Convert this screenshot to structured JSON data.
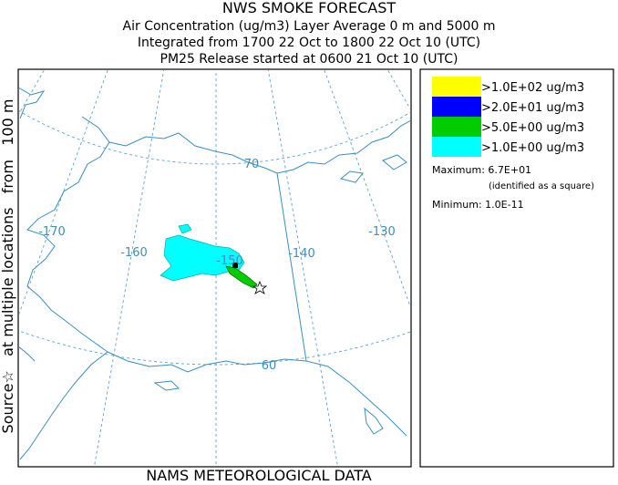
{
  "header": {
    "title": "NWS SMOKE FORECAST",
    "lines": [
      "Air Concentration (ug/m3) Layer Average    0 m and  5000 m",
      "Integrated from 1700 22 Oct to 1800 22 Oct 10 (UTC)",
      "PM25 Release started at 0600 21 Oct 10 (UTC)"
    ]
  },
  "side_label": "Source☆   at multiple locations   from   100 m",
  "map": {
    "labels": [
      "-170",
      "-160",
      "-150",
      "-140",
      "-130",
      "70",
      "60"
    ]
  },
  "legend": {
    "items": [
      {
        "label": ">1.0E+02 ug/m3",
        "color": "#ffff00"
      },
      {
        "label": ">2.0E+01 ug/m3",
        "color": "#0000ff"
      },
      {
        "label": ">5.0E+00 ug/m3",
        "color": "#00cc00"
      },
      {
        "label": ">1.0E+00 ug/m3",
        "color": "#00ffff"
      }
    ],
    "maximum": "Maximum: 6.7E+01",
    "maximum_note": "(identified as a square)",
    "minimum": "Minimum: 1.0E-11"
  },
  "footer": "NAMS METEOROLOGICAL DATA"
}
